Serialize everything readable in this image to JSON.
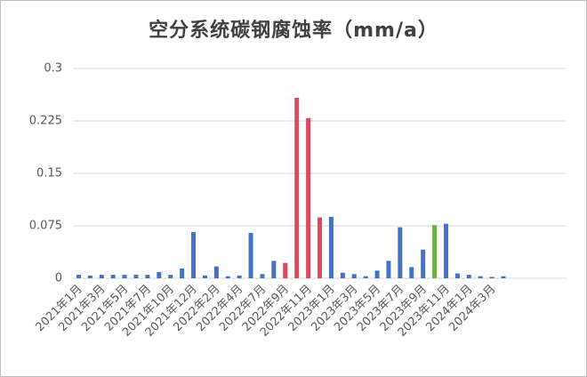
{
  "chart_data": {
    "type": "bar",
    "title": "空分系统碳钢腐蚀率（mm/a）",
    "categories": [
      "2021年1月",
      null,
      "2021年3月",
      null,
      "2021年5月",
      null,
      "2021年7月",
      null,
      "2021年10月",
      null,
      "2021年12月",
      null,
      "2022年2月",
      null,
      "2022年4月",
      null,
      "2022年7月",
      null,
      "2022年9月",
      null,
      "2022年11月",
      null,
      "2023年1月",
      null,
      "2023年3月",
      null,
      "2023年5月",
      null,
      "2023年7月",
      null,
      "2023年9月",
      null,
      "2023年11月",
      null,
      "2024年1月",
      null,
      "2024年3月",
      null,
      null,
      null,
      null,
      null,
      null
    ],
    "values": [
      0.005,
      0.004,
      0.005,
      0.005,
      0.005,
      0.005,
      0.005,
      0.009,
      0.005,
      0.014,
      0.066,
      0.004,
      0.017,
      0.003,
      0.004,
      0.065,
      0.006,
      0.025,
      0.022,
      0.258,
      0.229,
      0.087,
      0.088,
      0.008,
      0.006,
      0.003,
      0.011,
      0.025,
      0.073,
      0.016,
      0.041,
      0.076,
      0.078,
      0.007,
      0.005,
      0.003,
      0.002,
      0.003,
      null,
      null,
      null,
      null,
      null
    ],
    "colors": [
      "#4472c4",
      "#4472c4",
      "#4472c4",
      "#4472c4",
      "#4472c4",
      "#4472c4",
      "#4472c4",
      "#4472c4",
      "#4472c4",
      "#4472c4",
      "#4472c4",
      "#4472c4",
      "#4472c4",
      "#4472c4",
      "#4472c4",
      "#4472c4",
      "#4472c4",
      "#4472c4",
      "#dc4a5e",
      "#dc4a5e",
      "#dc4a5e",
      "#dc4a5e",
      "#4472c4",
      "#4472c4",
      "#4472c4",
      "#4472c4",
      "#4472c4",
      "#4472c4",
      "#4472c4",
      "#4472c4",
      "#4472c4",
      "#70ad47",
      "#4472c4",
      "#4472c4",
      "#4472c4",
      "#4472c4",
      "#4472c4",
      "#4472c4",
      "#4472c4",
      "#4472c4",
      "#4472c4",
      "#4472c4",
      "#4472c4"
    ],
    "ylim": [
      0,
      0.3
    ],
    "yticks": [
      0,
      0.075,
      0.15,
      0.225,
      0.3
    ],
    "grid": true
  }
}
